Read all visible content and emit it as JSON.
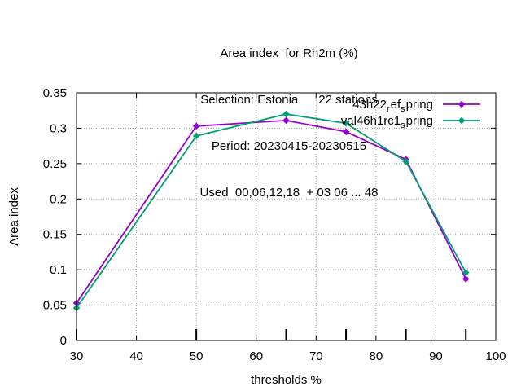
{
  "chart_data": {
    "type": "line",
    "title_lines": [
      "Area index  for Rh2m (%)",
      "Selection: Estonia      22 stations",
      "Period: 20230415-20230515",
      "Used  00,06,12,18  + 03 06 ... 48"
    ],
    "xlabel": "thresholds %",
    "ylabel": "Area index",
    "xlim": [
      30,
      100
    ],
    "ylim": [
      0,
      0.35
    ],
    "x_ticks": [
      30,
      40,
      50,
      60,
      70,
      80,
      90,
      100
    ],
    "x_tick_labels": [
      "30",
      "40",
      "50",
      "60",
      "70",
      "80",
      "90",
      "100"
    ],
    "y_ticks": [
      0,
      0.05,
      0.1,
      0.15,
      0.2,
      0.25,
      0.3,
      0.35
    ],
    "y_tick_labels": [
      "0",
      "0.05",
      "0.1",
      "0.15",
      "0.2",
      "0.25",
      "0.3",
      "0.35"
    ],
    "grid": true,
    "legend_position": "top-right",
    "threshold_marks": [
      30,
      50,
      65,
      75,
      85,
      95
    ],
    "series": [
      {
        "name": "43h22_ref_spring",
        "legend_parts": [
          "43h22",
          "r",
          "ef",
          "s",
          "pring"
        ],
        "color": "#9400d3",
        "x": [
          30,
          50,
          65,
          75,
          85,
          95
        ],
        "values": [
          0.053,
          0.303,
          0.311,
          0.295,
          0.256,
          0.087
        ]
      },
      {
        "name": "val46h1rc1_spring",
        "legend_parts": [
          "val46h1rc1",
          "s",
          "pring"
        ],
        "color": "#009e73",
        "x": [
          30,
          50,
          65,
          75,
          85,
          95
        ],
        "values": [
          0.046,
          0.289,
          0.32,
          0.307,
          0.253,
          0.096
        ]
      }
    ]
  }
}
